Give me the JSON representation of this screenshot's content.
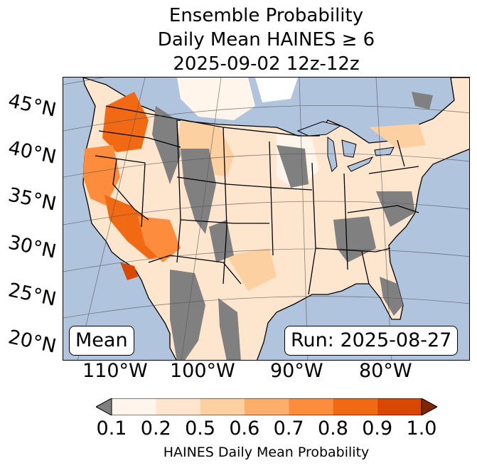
{
  "title": {
    "line1": "Ensemble Probability",
    "line2": "Daily Mean HAINES ≥ 6",
    "line3": "2025-09-02 12z-12z"
  },
  "map": {
    "ocean_color": "#b0c4de",
    "no_data_color": "#808080",
    "lat_labels": [
      "45°N",
      "40°N",
      "35°N",
      "30°N",
      "25°N",
      "20°N"
    ],
    "lon_labels": [
      "110°W",
      "100°W",
      "90°W",
      "80°W"
    ],
    "stat_label": "Mean",
    "run_label": "Run: 2025-08-27"
  },
  "colorbar": {
    "label": "HAINES Daily Mean Probability",
    "ticks": [
      "0.1",
      "0.2",
      "0.5",
      "0.6",
      "0.7",
      "0.8",
      "0.9",
      "1.0"
    ],
    "under_color": "#808080",
    "over_color": "#7f2704",
    "colors": [
      "#fff5eb",
      "#fee6ce",
      "#fdd0a2",
      "#fdae6b",
      "#fd8d3c",
      "#f16913",
      "#d94801"
    ]
  }
}
